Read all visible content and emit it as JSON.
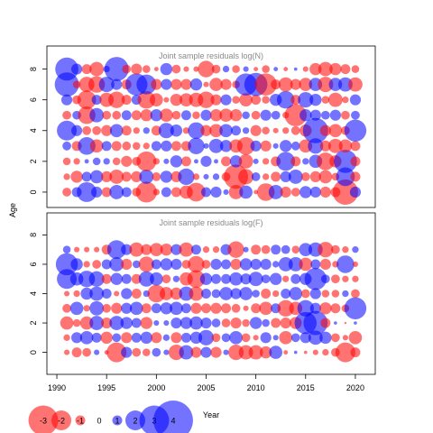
{
  "chart_data": {
    "type": "scatter",
    "subtype": "bubble-residuals",
    "ylabel": "Age",
    "xlabel": "Year",
    "x_ticks": [
      1990,
      1995,
      2000,
      2005,
      2010,
      2015,
      2020
    ],
    "y_ticks": [
      0,
      2,
      4,
      6,
      8
    ],
    "xlim": [
      1989,
      2022
    ],
    "years": [
      1991,
      1992,
      1993,
      1994,
      1995,
      1996,
      1997,
      1998,
      1999,
      2000,
      2001,
      2002,
      2003,
      2004,
      2005,
      2006,
      2007,
      2008,
      2009,
      2010,
      2011,
      2012,
      2013,
      2014,
      2015,
      2016,
      2017,
      2018,
      2019,
      2020
    ],
    "colors": {
      "positive": "#0000ff",
      "negative": "#ff0000",
      "alpha": 0.55
    },
    "legend": {
      "placement": "bottom-left",
      "values": [
        -3,
        -2,
        -1,
        0,
        1,
        2,
        3,
        4
      ],
      "labels": [
        "-3",
        "-2",
        "-1",
        "0",
        "1",
        "2",
        "3",
        "4"
      ]
    },
    "panels": [
      {
        "title": "Joint sample residuals log(N)",
        "ylim": [
          -1,
          9.5
        ],
        "residuals": {
          "0": [
            -0.8,
            0.9,
            1.8,
            1.0,
            -0.9,
            1.3,
            0.9,
            -0.8,
            -1.9,
            -0.6,
            0.9,
            -0.9,
            -1.2,
            -1.7,
            0.9,
            1.0,
            0.5,
            -1.3,
            1.2,
            -0.4,
            -1.6,
            1.3,
            -1.0,
            -0.8,
            1.1,
            1.0,
            -1.0,
            -0.9,
            -2.3,
            1.0
          ],
          "1": [
            -0.6,
            -1.1,
            0.9,
            1.2,
            -1.0,
            -1.3,
            -0.9,
            -1.0,
            1.3,
            -0.8,
            1.1,
            -1.0,
            1.5,
            -0.6,
            0.5,
            0.6,
            -0.8,
            -2.2,
            -1.4,
            0.8,
            -0.6,
            -0.9,
            1.0,
            1.3,
            -0.8,
            -1.0,
            -1.2,
            -0.7,
            1.7,
            -0.9
          ],
          "2": [
            -0.7,
            -0.6,
            0.4,
            0.7,
            0.6,
            -0.7,
            -1.0,
            -0.8,
            -1.8,
            -0.6,
            0.5,
            1.1,
            -0.9,
            0.4,
            1.0,
            0.4,
            -0.9,
            1.1,
            -1.3,
            0.5,
            -0.6,
            -0.9,
            1.7,
            -0.9,
            0.6,
            1.2,
            -1.6,
            -1.1,
            2.1,
            -0.9
          ],
          "3": [
            0.8,
            -0.9,
            1.6,
            -1.2,
            0.9,
            -0.9,
            -0.8,
            -0.7,
            -0.6,
            0.9,
            1.0,
            -0.9,
            -0.9,
            1.5,
            0.5,
            1.3,
            1.1,
            -1.2,
            -1.6,
            1.0,
            -1.0,
            0.5,
            1.1,
            0.8,
            -1.2,
            1.4,
            -1.0,
            -1.3,
            -1.2,
            -0.9
          ],
          "4": [
            1.8,
            1.0,
            -0.8,
            -0.8,
            -1.0,
            1.2,
            -0.9,
            -0.6,
            0.6,
            -0.9,
            1.4,
            1.1,
            -0.6,
            1.5,
            -1.0,
            -1.2,
            1.2,
            0.9,
            0.6,
            -1.0,
            -0.7,
            -0.5,
            -0.6,
            -0.8,
            -1.1,
            2.3,
            -1.0,
            -1.2,
            -0.8,
            2.0
          ],
          "5": [
            -0.8,
            0.8,
            -1.6,
            1.3,
            -0.8,
            -0.8,
            0.9,
            -0.9,
            -1.1,
            1.1,
            -1.2,
            -0.8,
            0.9,
            -0.7,
            1.0,
            -1.1,
            -1.2,
            -1.1,
            0.7,
            -0.8,
            1.0,
            0.8,
            -0.6,
            -2.0,
            1.1,
            1.0,
            0.8,
            1.0,
            -0.8,
            0.8
          ],
          "6": [
            1.0,
            -0.8,
            -1.7,
            0.9,
            -1.3,
            -1.5,
            -0.9,
            0.9,
            -1.6,
            -1.2,
            -0.5,
            -1.1,
            -1.2,
            -1.3,
            -1.5,
            -1.0,
            1.0,
            -0.7,
            -1.2,
            -0.9,
            -0.7,
            1.1,
            1.6,
            -0.9,
            1.4,
            1.1,
            -0.7,
            -1.3,
            -0.6,
            1.0
          ],
          "7": [
            2.2,
            -0.7,
            -1.4,
            -1.5,
            1.4,
            1.0,
            -0.9,
            2.0,
            1.8,
            -1.0,
            1.0,
            -1.0,
            -1.0,
            1.1,
            -0.5,
            -1.2,
            -1.0,
            -0.7,
            2.0,
            2.1,
            -2.0,
            -0.9,
            -1.3,
            -1.0,
            -1.2,
            1.2,
            -1.4,
            1.2,
            1.3,
            -1.3
          ],
          "8": [
            2.1,
            1.0,
            -0.9,
            -1.3,
            0.6,
            2.2,
            -0.8,
            -1.0,
            -0.7,
            -0.4,
            1.1,
            -0.8,
            -0.5,
            -0.5,
            -1.5,
            -0.8,
            0.6,
            -0.7,
            0.5,
            -0.4,
            -0.7,
            0.4,
            -0.4,
            0.3,
            -0.5,
            -1.1,
            -1.3,
            -1.1,
            -0.9,
            -0.7
          ]
        }
      },
      {
        "title": "Joint sample residuals log(F)",
        "ylim": [
          -1.5,
          9.5
        ],
        "residuals": {
          "0": [
            -0.5,
            -0.9,
            -0.8,
            0.5,
            -0.4,
            -1.8,
            1.0,
            -0.8,
            -0.7,
            0.8,
            0.5,
            -1.4,
            1.3,
            -1.0,
            1.0,
            -1.0,
            0.5,
            -1.4,
            -1.3,
            -1.3,
            -1.1,
            1.2,
            -0.4,
            0.3,
            -0.3,
            -0.5,
            -0.6,
            -0.8,
            -1.8,
            -0.9
          ],
          "1": [
            -0.6,
            1.0,
            1.2,
            0.9,
            -1.1,
            0.8,
            -1.0,
            0.9,
            1.1,
            -1.0,
            0.6,
            -1.0,
            0.9,
            1.1,
            1.4,
            -0.8,
            0.8,
            1.2,
            -0.8,
            -0.5,
            1.0,
            0.5,
            -1.2,
            0.8,
            1.0,
            1.3,
            1.1,
            -0.8,
            -0.5,
            -1.2
          ],
          "2": [
            -1.2,
            -0.7,
            -1.2,
            1.3,
            -1.0,
            1.3,
            1.1,
            0.9,
            -1.1,
            0.5,
            0.5,
            1.0,
            1.1,
            1.2,
            1.0,
            0.8,
            -0.8,
            -1.0,
            -0.7,
            1.1,
            0.7,
            -0.9,
            -1.0,
            -1.1,
            2.0,
            2.2,
            -0.9,
            0.3,
            -0.2,
            0.3
          ],
          "3": [
            -0.8,
            1.2,
            -0.6,
            1.3,
            -0.8,
            -1.0,
            1.0,
            1.2,
            -0.9,
            0.9,
            1.1,
            1.2,
            0.9,
            -1.0,
            -0.9,
            -1.0,
            -0.9,
            -0.8,
            -0.5,
            -0.9,
            -1.2,
            0.9,
            -1.5,
            -1.2,
            1.5,
            1.0,
            -1.1,
            -0.9,
            -0.7,
            2.0
          ],
          "4": [
            -0.5,
            -0.6,
            1.1,
            1.3,
            0.9,
            -0.5,
            1.0,
            -0.9,
            0.6,
            -1.6,
            -1.2,
            -1.1,
            1.3,
            -1.3,
            0.9,
            0.8,
            1.2,
            1.0,
            1.2,
            0.7,
            -0.9,
            -0.6,
            0.9,
            1.2,
            -0.8,
            1.0,
            -0.7,
            -0.7,
            0.6,
            -0.8
          ],
          "5": [
            1.8,
            1.2,
            1.5,
            1.4,
            -0.9,
            1.1,
            0.9,
            -0.9,
            1.4,
            1.2,
            -0.8,
            0.6,
            -1.2,
            -1.6,
            1.1,
            0.9,
            0.9,
            1.2,
            1.0,
            1.3,
            0.8,
            1.1,
            -0.6,
            0.9,
            1.1,
            2.0,
            0.8,
            -0.8,
            -0.6,
            -0.6
          ],
          "6": [
            2.0,
            1.1,
            -0.6,
            -0.8,
            0.9,
            1.3,
            -1.0,
            0.7,
            -1.4,
            0.9,
            1.1,
            1.0,
            -0.8,
            -1.5,
            -0.8,
            1.0,
            0.9,
            -1.0,
            1.1,
            1.0,
            1.0,
            0.6,
            1.3,
            1.3,
            -1.2,
            0.9,
            -1.0,
            -0.6,
            1.6,
            -0.5
          ],
          "7": [
            0.7,
            -0.5,
            -0.5,
            -0.5,
            -0.9,
            1.7,
            1.0,
            -1.3,
            -1.0,
            -1.2,
            -1.1,
            1.0,
            -1.3,
            0.9,
            -0.6,
            -0.6,
            1.0,
            -1.5,
            0.5,
            -0.9,
            -0.8,
            0.9,
            0.8,
            -0.7,
            1.2,
            1.3,
            -1.4,
            -0.8,
            -0.6,
            0.6
          ]
        }
      }
    ]
  }
}
